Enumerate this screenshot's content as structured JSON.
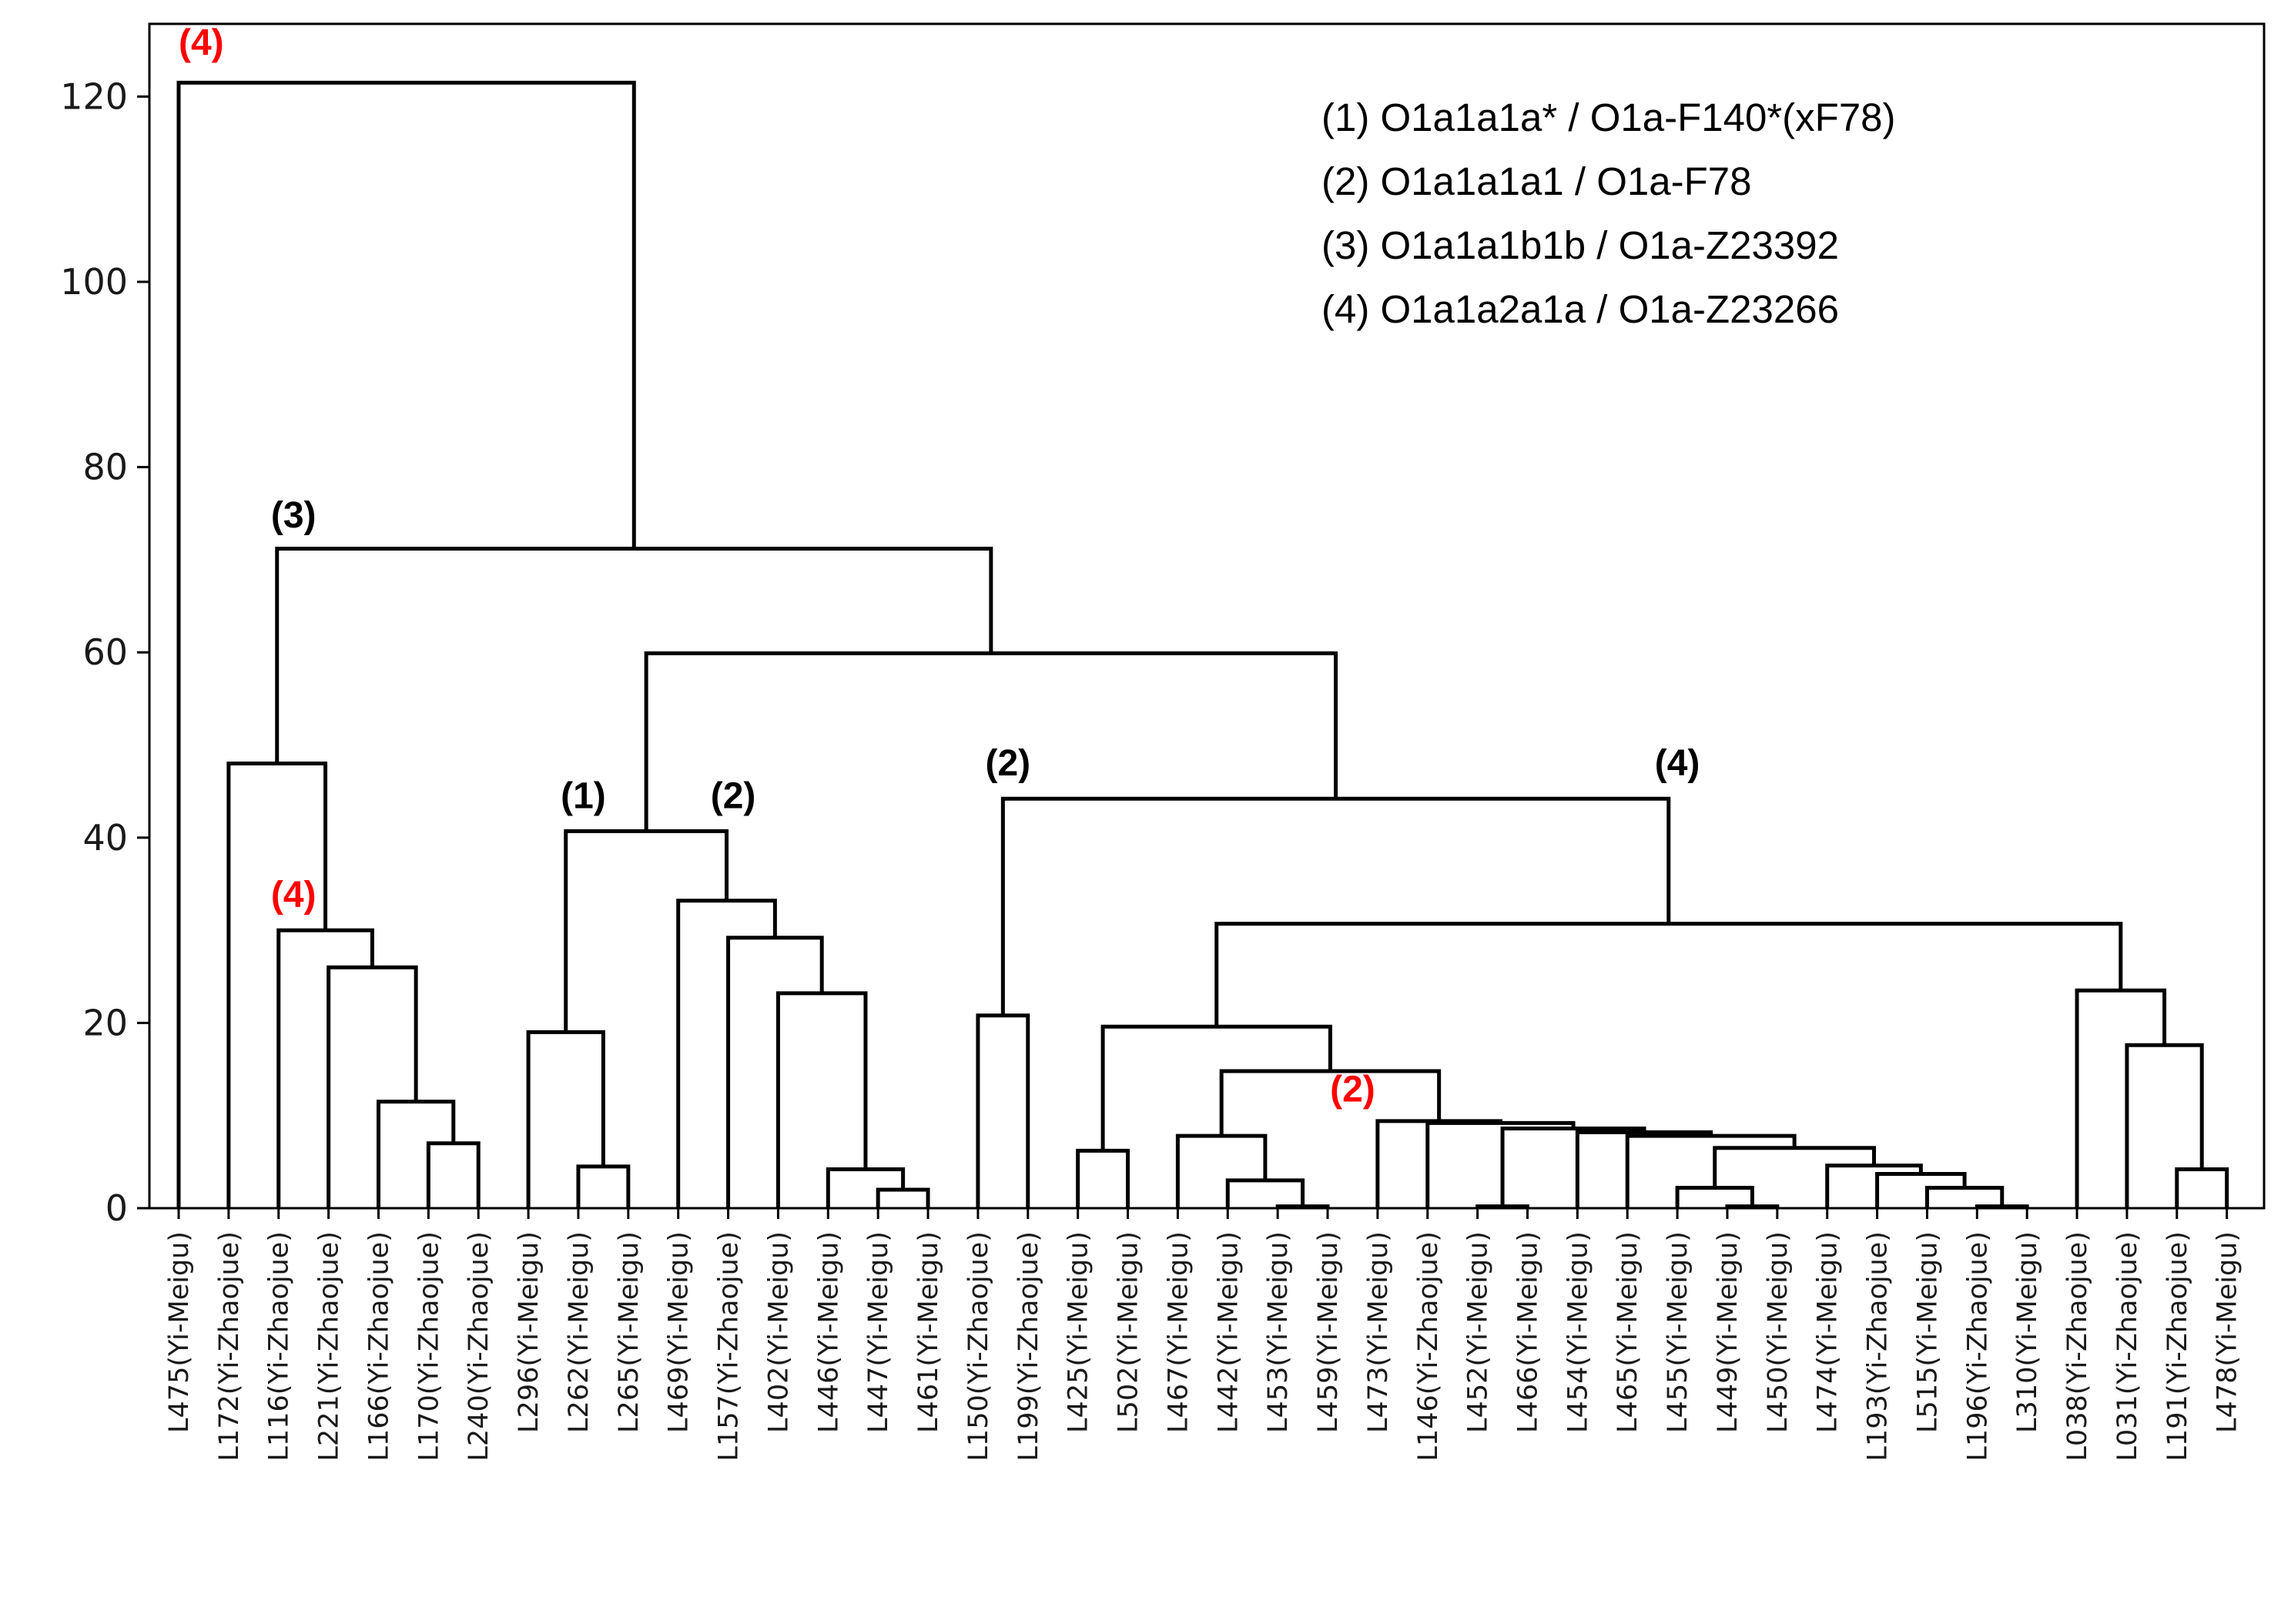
{
  "chart_data": {
    "type": "dendrogram",
    "title": "",
    "xlabel": "",
    "ylabel": "",
    "ylim": [
      0,
      126
    ],
    "y_ticks": [
      0,
      20,
      40,
      60,
      80,
      100,
      120
    ],
    "leaves": [
      "L475(Yi-Meigu)",
      "L172(Yi-Zhaojue)",
      "L116(Yi-Zhaojue)",
      "L221(Yi-Zhaojue)",
      "L166(Yi-Zhaojue)",
      "L170(Yi-Zhaojue)",
      "L240(Yi-Zhaojue)",
      "L296(Yi-Meigu)",
      "L262(Yi-Meigu)",
      "L265(Yi-Meigu)",
      "L469(Yi-Meigu)",
      "L157(Yi-Zhaojue)",
      "L402(Yi-Meigu)",
      "L446(Yi-Meigu)",
      "L447(Yi-Meigu)",
      "L461(Yi-Meigu)",
      "L150(Yi-Zhaojue)",
      "L199(Yi-Zhaojue)",
      "L425(Yi-Meigu)",
      "L502(Yi-Meigu)",
      "L467(Yi-Meigu)",
      "L442(Yi-Meigu)",
      "L453(Yi-Meigu)",
      "L459(Yi-Meigu)",
      "L473(Yi-Meigu)",
      "L146(Yi-Zhaojue)",
      "L452(Yi-Meigu)",
      "L466(Yi-Meigu)",
      "L454(Yi-Meigu)",
      "L465(Yi-Meigu)",
      "L455(Yi-Meigu)",
      "L449(Yi-Meigu)",
      "L450(Yi-Meigu)",
      "L474(Yi-Meigu)",
      "L193(Yi-Zhaojue)",
      "L515(Yi-Meigu)",
      "L196(Yi-Zhaojue)",
      "L310(Yi-Meigu)",
      "L038(Yi-Zhaojue)",
      "L031(Yi-Zhaojue)",
      "L191(Yi-Zhaojue)",
      "L478(Yi-Meigu)"
    ],
    "merges": [
      {
        "id": "A",
        "left": 5,
        "right": 6,
        "height": 7
      },
      {
        "id": "B",
        "left": 4,
        "right": "A",
        "height": 11.5
      },
      {
        "id": "C",
        "left": 3,
        "right": "B",
        "height": 26
      },
      {
        "id": "D",
        "left": 2,
        "right": "C",
        "height": 30
      },
      {
        "id": "E",
        "left": 1,
        "right": "D",
        "height": 48
      },
      {
        "id": "F",
        "left": 8,
        "right": 9,
        "height": 4.5
      },
      {
        "id": "G",
        "left": 7,
        "right": "F",
        "height": 19
      },
      {
        "id": "H",
        "left": 14,
        "right": 15,
        "height": 2
      },
      {
        "id": "I",
        "left": 13,
        "right": "H",
        "height": 4.2
      },
      {
        "id": "J",
        "left": 12,
        "right": "I",
        "height": 23.2
      },
      {
        "id": "K",
        "left": 11,
        "right": "J",
        "height": 29.2
      },
      {
        "id": "L",
        "left": 10,
        "right": "K",
        "height": 33.2
      },
      {
        "id": "M",
        "left": "G",
        "right": "L",
        "height": 40.7
      },
      {
        "id": "N",
        "left": 16,
        "right": 17,
        "height": 20.8
      },
      {
        "id": "O",
        "left": 18,
        "right": 19,
        "height": 6.2
      },
      {
        "id": "P",
        "left": 22,
        "right": 23,
        "height": 0.2
      },
      {
        "id": "Q",
        "left": 21,
        "right": "P",
        "height": 3
      },
      {
        "id": "R",
        "left": 20,
        "right": "Q",
        "height": 7.8
      },
      {
        "id": "S",
        "left": 26,
        "right": 27,
        "height": 0.2
      },
      {
        "id": "T",
        "left": 31,
        "right": 32,
        "height": 0.2
      },
      {
        "id": "U",
        "left": 30,
        "right": "T",
        "height": 2.2
      },
      {
        "id": "V",
        "left": 36,
        "right": 37,
        "height": 0.2
      },
      {
        "id": "W",
        "left": 35,
        "right": "V",
        "height": 2.2
      },
      {
        "id": "X",
        "left": 34,
        "right": "W",
        "height": 3.7
      },
      {
        "id": "Y",
        "left": 33,
        "right": "X",
        "height": 4.6
      },
      {
        "id": "Z",
        "left": "U",
        "right": "Y",
        "height": 6.5
      },
      {
        "id": "AA",
        "left": 29,
        "right": "Z",
        "height": 7.8
      },
      {
        "id": "AB",
        "left": 28,
        "right": "AA",
        "height": 8.2
      },
      {
        "id": "AC",
        "left": "S",
        "right": "AB",
        "height": 8.6
      },
      {
        "id": "AD",
        "left": 25,
        "right": "AC",
        "height": 9.2
      },
      {
        "id": "AE",
        "left": 24,
        "right": "AD",
        "height": 9.4
      },
      {
        "id": "AF",
        "left": "R",
        "right": "AE",
        "height": 14.8
      },
      {
        "id": "AG",
        "left": "O",
        "right": "AF",
        "height": 19.6
      },
      {
        "id": "AH",
        "left": 40,
        "right": 41,
        "height": 4.2
      },
      {
        "id": "AI",
        "left": 39,
        "right": "AH",
        "height": 17.6
      },
      {
        "id": "AJ",
        "left": 38,
        "right": "AI",
        "height": 23.5
      },
      {
        "id": "AK",
        "left": "AG",
        "right": "AJ",
        "height": 30.7
      },
      {
        "id": "AL",
        "left": "N",
        "right": "AK",
        "height": 44.2
      },
      {
        "id": "AM",
        "left": "M",
        "right": "AL",
        "height": 59.9
      },
      {
        "id": "AN",
        "left": "E",
        "right": "AM",
        "height": 71.2
      },
      {
        "id": "AO",
        "left": 0,
        "right": "AN",
        "height": 121.5
      }
    ],
    "annotations": [
      {
        "text": "(4)",
        "color": "#ff0000",
        "leaf_x": 0.0,
        "y": 124.5,
        "anchor": "start"
      },
      {
        "text": "(3)",
        "color": "#000000",
        "leaf_x": 2.3,
        "y": 73.5,
        "anchor": "middle"
      },
      {
        "text": "(4)",
        "color": "#ff0000",
        "leaf_x": 2.3,
        "y": 32.5,
        "anchor": "middle"
      },
      {
        "text": "(1)",
        "color": "#000000",
        "leaf_x": 8.1,
        "y": 43.2,
        "anchor": "middle"
      },
      {
        "text": "(2)",
        "color": "#000000",
        "leaf_x": 11.1,
        "y": 43.2,
        "anchor": "middle"
      },
      {
        "text": "(2)",
        "color": "#000000",
        "leaf_x": 16.6,
        "y": 46.7,
        "anchor": "middle"
      },
      {
        "text": "(4)",
        "color": "#000000",
        "leaf_x": 30.0,
        "y": 46.7,
        "anchor": "middle"
      },
      {
        "text": "(2)",
        "color": "#ff0000",
        "leaf_x": 23.5,
        "y": 11.5,
        "anchor": "middle"
      }
    ],
    "legend": {
      "placement": "top-right",
      "entries": [
        "(1) O1a1a1a* / O1a-F140*(xF78)",
        "(2) O1a1a1a1 / O1a-F78",
        "(3) O1a1a1b1b / O1a-Z23392",
        "(4) O1a1a2a1a / O1a-Z23266"
      ]
    },
    "grid": false,
    "line_color": "#000000",
    "red_color": "#ff0000"
  }
}
